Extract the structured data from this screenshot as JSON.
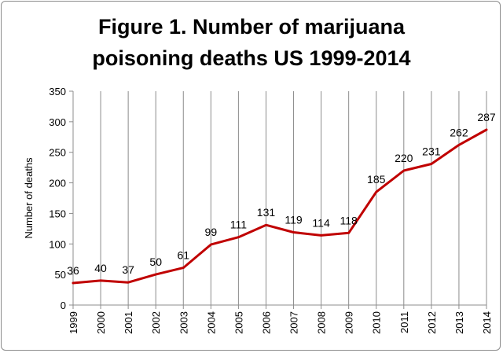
{
  "chart_data": {
    "type": "line",
    "title_line1": "Figure 1. Number of marijuana",
    "title_line2": "poisoning deaths US 1999-2014",
    "xlabel": "",
    "ylabel": "Number of deaths",
    "x": [
      "1999",
      "2000",
      "2001",
      "2002",
      "2003",
      "2004",
      "2005",
      "2006",
      "2007",
      "2008",
      "2009",
      "2010",
      "2011",
      "2012",
      "2013",
      "2014"
    ],
    "series": [
      {
        "values": [
          36,
          40,
          37,
          50,
          61,
          99,
          111,
          131,
          119,
          114,
          118,
          185,
          220,
          231,
          262,
          287
        ]
      }
    ],
    "data_labels": [
      "36",
      "40",
      "37",
      "50",
      "61",
      "99",
      "111",
      "131",
      "119",
      "114",
      "118",
      "185",
      "220",
      "231",
      "262",
      "287"
    ],
    "ylim": [
      0,
      350
    ],
    "yticks": [
      0,
      50,
      100,
      150,
      200,
      250,
      300,
      350
    ],
    "grid": "vertical",
    "legend": "none",
    "line_color": "#c00000"
  }
}
